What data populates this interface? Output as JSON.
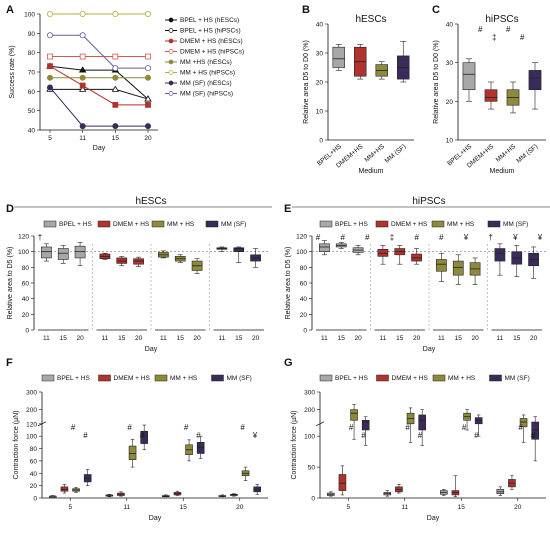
{
  "colors": {
    "bpel": "#a8a8a8",
    "dmem": "#b0332d",
    "mm": "#8f8a3b",
    "mmsf": "#3a2b5a",
    "tan": "#d6c79a",
    "lightgray": "#cfcfcf"
  },
  "panel_labels": [
    "A",
    "B",
    "C",
    "D",
    "E",
    "F",
    "G"
  ],
  "chart_data": [
    {
      "id": "A",
      "type": "line",
      "xlabel": "Day",
      "ylabel": "Success rate (%)",
      "x": [
        5,
        11,
        15,
        20
      ],
      "ylim": [
        40,
        100
      ],
      "yticks": [
        40,
        50,
        60,
        70,
        80,
        90,
        100
      ],
      "series": [
        {
          "name": "BPEL + HS (hESCs)",
          "color": "#111111",
          "marker": "tri-filled",
          "values": [
            73,
            71,
            71,
            56
          ]
        },
        {
          "name": "BPEL + HS (hiPSCs)",
          "color": "#111111",
          "marker": "tri-open",
          "values": [
            61,
            61,
            61,
            56
          ]
        },
        {
          "name": "DMEM + HS (hESCs)",
          "color": "#b0332d",
          "marker": "sq-filled",
          "values": [
            73,
            63,
            53,
            53
          ]
        },
        {
          "name": "DMEM + HS (hiPSCs)",
          "color": "#d05a50",
          "marker": "sq-open",
          "values": [
            78,
            78,
            78,
            78
          ]
        },
        {
          "name": "MM +HS (hESCs)",
          "color": "#8f8a3b",
          "marker": "ci-filled",
          "values": [
            67,
            67,
            67,
            67
          ]
        },
        {
          "name": "MM + HS (hiPSCs)",
          "color": "#b5ad4a",
          "marker": "ci-open",
          "values": [
            100,
            100,
            100,
            100
          ]
        },
        {
          "name": "MM (SF) (hESCs)",
          "color": "#3a2b5a",
          "marker": "ci-filled",
          "values": [
            62,
            42,
            42,
            42
          ]
        },
        {
          "name": "MM (SF) (hiPSCs)",
          "color": "#6a5a99",
          "marker": "ci-open",
          "values": [
            89,
            89,
            72,
            72
          ]
        }
      ]
    },
    {
      "id": "B",
      "type": "box",
      "title": "hESCs",
      "xlabel": "Medium",
      "ylabel": "Relative area D5 to D0 (%)",
      "ylim": [
        0,
        40
      ],
      "yticks": [
        0,
        10,
        20,
        30,
        40
      ],
      "categories": [
        "BPEL+HS",
        "DMEM+HS",
        "MM+HS",
        "MM (SF)"
      ],
      "boxes": [
        [
          24,
          25,
          28,
          32,
          33
        ],
        [
          21,
          22,
          27,
          32,
          33
        ],
        [
          21,
          22,
          24,
          26,
          27
        ],
        [
          20,
          21,
          25,
          29,
          34
        ]
      ]
    },
    {
      "id": "C",
      "type": "box",
      "title": "hiPSCs",
      "xlabel": "Medium",
      "ylabel": "Relative area D5 to D0 (%)",
      "ylim": [
        10,
        40
      ],
      "yticks": [
        10,
        20,
        30,
        40
      ],
      "categories": [
        "BPEL+HS",
        "DMEM+HS",
        "MM+HS",
        "MM (SF)"
      ],
      "boxes": [
        [
          20,
          23,
          27,
          30,
          31
        ],
        [
          18,
          20,
          21,
          23,
          25
        ],
        [
          17,
          19,
          21,
          23,
          25
        ],
        [
          18,
          23,
          26,
          28,
          30
        ]
      ],
      "annotations": [
        "#",
        "‡",
        "#",
        "#"
      ]
    },
    {
      "id": "D",
      "type": "box",
      "title": "hESCs",
      "xlabel": "Day",
      "ylabel": "Relative area to D5 (%)",
      "ylim": [
        0,
        120
      ],
      "yticks": [
        0,
        20,
        40,
        60,
        80,
        100,
        120
      ],
      "legend": [
        "BPEL + HS",
        "DMEM + HS",
        "MM + HS",
        "MM (SF)"
      ],
      "groups": [
        {
          "days": [
            "11",
            "15",
            "20"
          ],
          "boxes": [
            [
              88,
              92,
              100,
              106,
              110
            ],
            [
              85,
              90,
              98,
              104,
              108
            ],
            [
              82,
              92,
              100,
              107,
              112
            ]
          ]
        },
        {
          "days": [
            "11",
            "15",
            "20"
          ],
          "boxes": [
            [
              90,
              91,
              94,
              97,
              98
            ],
            [
              82,
              85,
              88,
              92,
              94
            ],
            [
              81,
              84,
              88,
              91,
              93
            ]
          ]
        },
        {
          "days": [
            "11",
            "15",
            "20"
          ],
          "boxes": [
            [
              92,
              93,
              96,
              99,
              101
            ],
            [
              86,
              88,
              91,
              94,
              96
            ],
            [
              72,
              76,
              82,
              88,
              91
            ]
          ]
        },
        {
          "days": [
            "11",
            "15",
            "20"
          ],
          "boxes": [
            [
              100,
              103,
              104,
              105,
              106
            ],
            [
              86,
              100,
              104,
              105,
              106
            ],
            [
              80,
              88,
              92,
              96,
              104
            ]
          ]
        }
      ],
      "annotations": [
        "†"
      ]
    },
    {
      "id": "E",
      "type": "box",
      "title": "hiPSCs",
      "xlabel": "Day",
      "ylabel": "Relative area to D5 (%)",
      "ylim": [
        0,
        120
      ],
      "yticks": [
        0,
        20,
        40,
        60,
        80,
        100,
        120
      ],
      "legend": [
        "BPEL + HS",
        "DMEM + HS",
        "MM + HS",
        "MM (SF)"
      ],
      "groups": [
        {
          "days": [
            "11",
            "15",
            "20"
          ],
          "boxes": [
            [
              96,
              100,
              106,
              110,
              114
            ],
            [
              104,
              106,
              108,
              110,
              112
            ],
            [
              96,
              99,
              102,
              105,
              108
            ]
          ]
        },
        {
          "days": [
            "11",
            "15",
            "20"
          ],
          "boxes": [
            [
              84,
              94,
              98,
              103,
              108
            ],
            [
              84,
              96,
              100,
              104,
              108
            ],
            [
              84,
              88,
              92,
              97,
              104
            ]
          ]
        },
        {
          "days": [
            "11",
            "15",
            "20"
          ],
          "boxes": [
            [
              62,
              75,
              84,
              90,
              98
            ],
            [
              58,
              70,
              80,
              88,
              96
            ],
            [
              58,
              70,
              78,
              86,
              92
            ]
          ]
        },
        {
          "days": [
            "11",
            "15",
            "20"
          ],
          "boxes": [
            [
              70,
              88,
              98,
              104,
              110
            ],
            [
              68,
              84,
              92,
              100,
              108
            ],
            [
              66,
              82,
              90,
              98,
              106
            ]
          ]
        }
      ],
      "annotations": [
        "#",
        "#",
        "#",
        "‡",
        "#",
        "#",
        "¥",
        "†",
        "¥",
        "¥"
      ]
    },
    {
      "id": "F",
      "type": "box",
      "xlabel": "Day",
      "ylabel": "Contraction force (µN)",
      "ylim": [
        0,
        300
      ],
      "yticks": [
        0,
        20,
        40,
        60,
        80,
        100,
        120,
        200,
        300
      ],
      "legend": [
        "BPEL + HS",
        "DMEM + HS",
        "MM + HS",
        "MM (SF)"
      ],
      "categories": [
        "5",
        "11",
        "15",
        "20"
      ],
      "boxes_by_day": [
        [
          [
            2,
            2,
            3,
            3,
            4
          ],
          [
            8,
            11,
            14,
            18,
            22
          ],
          [
            9,
            11,
            13,
            15,
            17
          ],
          [
            20,
            26,
            32,
            38,
            46
          ]
        ],
        [
          [
            2,
            3,
            4,
            5,
            6
          ],
          [
            3,
            4,
            6,
            8,
            10
          ],
          [
            50,
            62,
            72,
            84,
            95
          ],
          [
            78,
            88,
            100,
            108,
            118
          ]
        ],
        [
          [
            2,
            2,
            3,
            4,
            5
          ],
          [
            4,
            5,
            7,
            9,
            11
          ],
          [
            60,
            70,
            78,
            86,
            94
          ],
          [
            64,
            72,
            82,
            90,
            100
          ]
        ],
        [
          [
            2,
            3,
            3,
            4,
            5
          ],
          [
            3,
            4,
            5,
            6,
            7
          ],
          [
            28,
            36,
            40,
            44,
            50
          ],
          [
            6,
            10,
            14,
            18,
            22
          ]
        ]
      ],
      "annotations": [
        "#",
        "#",
        "#",
        "#",
        "#",
        "#",
        "#",
        "¥"
      ]
    },
    {
      "id": "G",
      "type": "box",
      "xlabel": "Day",
      "ylabel": "Contraction force (µN)",
      "ylim": [
        0,
        300
      ],
      "yticks": [
        0,
        50,
        100,
        200,
        300
      ],
      "legend": [
        "BPEL + HS",
        "DMEM + HS",
        "MM + HS",
        "MM (SF)"
      ],
      "categories": [
        "5",
        "11",
        "15",
        "20"
      ],
      "boxes_by_day": [
        [
          [
            3,
            4,
            6,
            8,
            10
          ],
          [
            5,
            12,
            24,
            38,
            52
          ],
          [
            95,
            140,
            180,
            200,
            230
          ],
          [
            85,
            110,
            130,
            140,
            160
          ]
        ],
        [
          [
            3,
            5,
            7,
            9,
            12
          ],
          [
            8,
            10,
            14,
            18,
            22
          ],
          [
            90,
            120,
            150,
            180,
            210
          ],
          [
            85,
            110,
            140,
            170,
            200
          ]
        ],
        [
          [
            4,
            6,
            9,
            12,
            14
          ],
          [
            2,
            5,
            9,
            12,
            36
          ],
          [
            110,
            140,
            160,
            180,
            200
          ],
          [
            100,
            120,
            140,
            155,
            170
          ]
        ],
        [
          [
            4,
            7,
            10,
            14,
            18
          ],
          [
            14,
            18,
            24,
            30,
            36
          ],
          [
            90,
            115,
            130,
            150,
            170
          ],
          [
            60,
            95,
            110,
            130,
            160
          ]
        ]
      ],
      "annotations": [
        "#",
        "#",
        "#",
        "#",
        "#",
        "#",
        "#",
        "#"
      ]
    }
  ]
}
